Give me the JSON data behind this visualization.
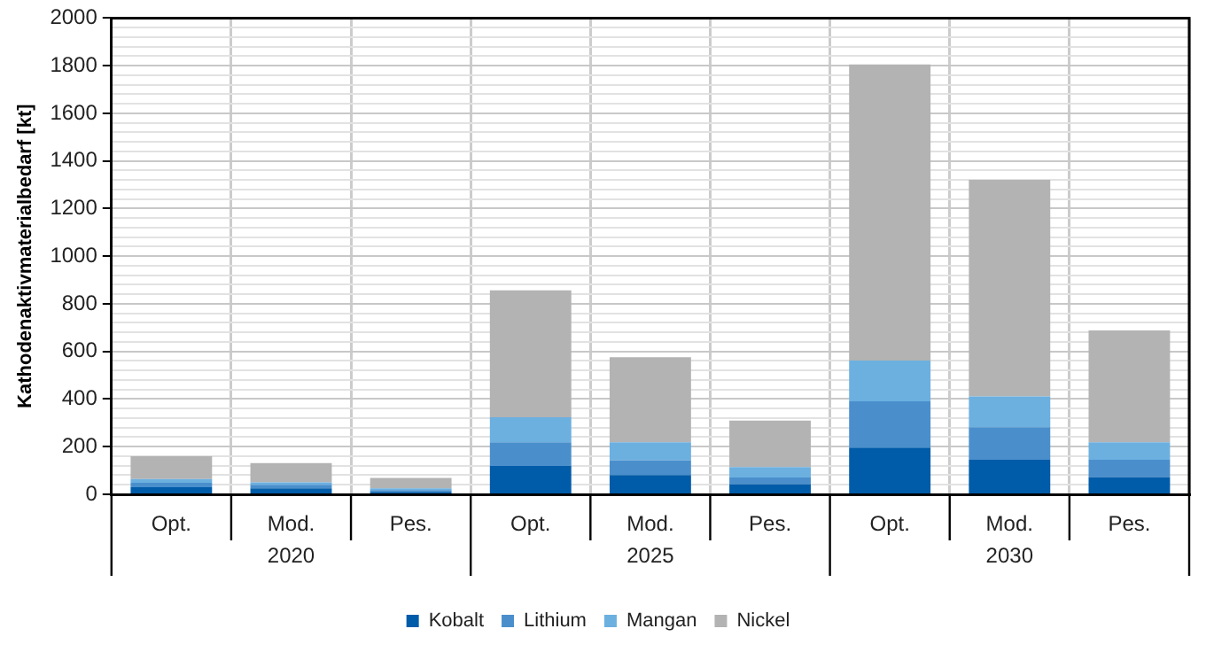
{
  "chart_data": {
    "type": "bar",
    "stacked": true,
    "ylabel": "Kathodenaktivmaterialbedarf [kt]",
    "categories": [
      "Opt.",
      "Mod.",
      "Pes.",
      "Opt.",
      "Mod.",
      "Pes.",
      "Opt.",
      "Mod.",
      "Pes."
    ],
    "annotations": [
      "2020",
      "2025",
      "2030"
    ],
    "series": [
      {
        "name": "Kobalt",
        "color": "#005ca9",
        "values": [
          30,
          25,
          10,
          119,
          81,
          43,
          196,
          145,
          73
        ]
      },
      {
        "name": "Lithium",
        "color": "#4a8fcc",
        "values": [
          18,
          15,
          8,
          100,
          62,
          28,
          195,
          137,
          72
        ]
      },
      {
        "name": "Mangan",
        "color": "#6cb0e0",
        "values": [
          16,
          10,
          7,
          105,
          76,
          43,
          171,
          129,
          74
        ]
      },
      {
        "name": "Nickel",
        "color": "#b3b3b3",
        "values": [
          96,
          81,
          44,
          533,
          357,
          196,
          1243,
          910,
          469
        ]
      }
    ],
    "ylim": [
      0,
      2000
    ],
    "yticks": [
      0,
      {
        "value": 40,
        "label": null
      },
      {
        "value": 80,
        "label": null
      },
      {
        "value": 120,
        "label": null
      },
      {
        "value": 160,
        "label": null
      },
      200,
      {
        "value": 240,
        "label": null
      },
      {
        "value": 280,
        "label": null
      },
      {
        "value": 320,
        "label": null
      },
      {
        "value": 360,
        "label": null
      },
      400,
      {
        "value": 440,
        "label": null
      },
      {
        "value": 480,
        "label": null
      },
      {
        "value": 520,
        "label": null
      },
      {
        "value": 560,
        "label": null
      },
      600,
      {
        "value": 640,
        "label": null
      },
      {
        "value": 680,
        "label": null
      },
      {
        "value": 720,
        "label": null
      },
      {
        "value": 760,
        "label": null
      },
      800,
      {
        "value": 840,
        "label": null
      },
      {
        "value": 880,
        "label": null
      },
      {
        "value": 920,
        "label": null
      },
      {
        "value": 960,
        "label": null
      },
      1000,
      {
        "value": 1040,
        "label": null
      },
      {
        "value": 1080,
        "label": null
      },
      {
        "value": 1120,
        "label": null
      },
      {
        "value": 1160,
        "label": null
      },
      1200,
      {
        "value": 1240,
        "label": null
      },
      {
        "value": 1280,
        "label": null
      },
      {
        "value": 1320,
        "label": null
      },
      {
        "value": 1360,
        "label": null
      },
      1400,
      {
        "value": 1440,
        "label": null
      },
      {
        "value": 1480,
        "label": null
      },
      {
        "value": 1520,
        "label": null
      },
      {
        "value": 1560,
        "label": null
      },
      1600,
      {
        "value": 1640,
        "label": null
      },
      {
        "value": 1680,
        "label": null
      },
      {
        "value": 1720,
        "label": null
      },
      {
        "value": 1760,
        "label": null
      },
      1800,
      {
        "value": 1840,
        "label": null
      },
      {
        "value": 1880,
        "label": null
      },
      {
        "value": 1920,
        "label": null
      },
      {
        "value": 1960,
        "label": null
      },
      2000
    ],
    "grid": true,
    "legend": "bottom"
  }
}
